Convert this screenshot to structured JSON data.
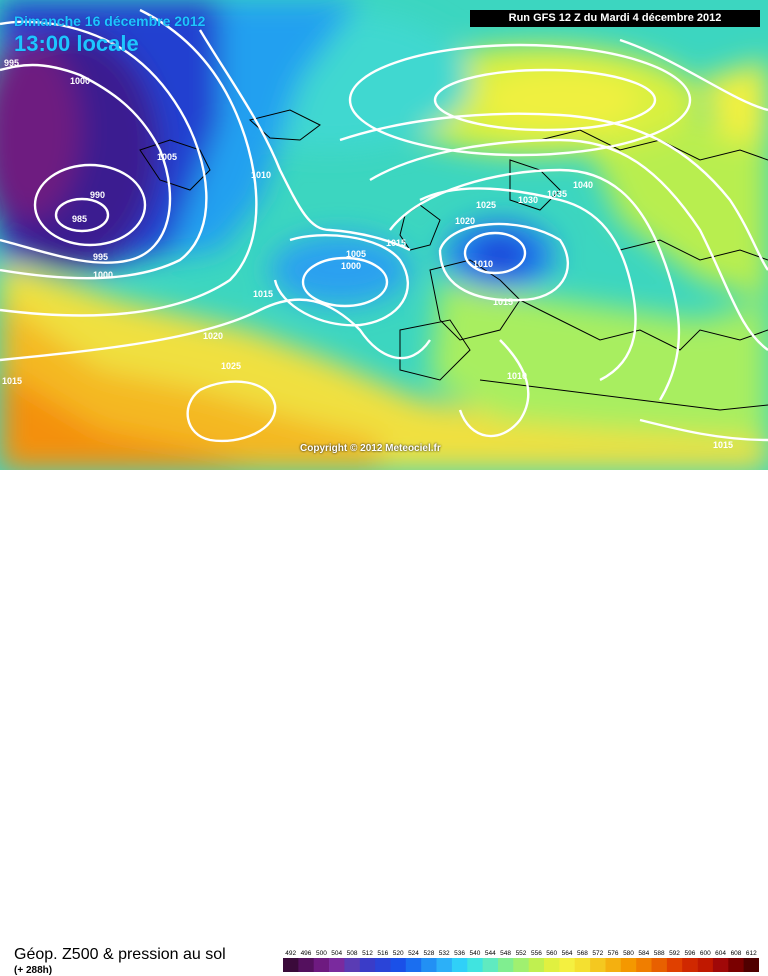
{
  "header": {
    "date": "Dimanche 16 décembre 2012",
    "time": "13:00 locale",
    "run": "Run GFS 12 Z du Mardi 4 décembre 2012"
  },
  "copyright": "Copyright © 2012 Meteociel.fr",
  "footer": {
    "title": "Géop. Z500 & pression au sol",
    "subtitle": "(+ 288h)"
  },
  "isobar_labels": [
    "995",
    "1000",
    "1005",
    "990",
    "985",
    "995",
    "1000",
    "1010",
    "1015",
    "1005",
    "1000",
    "1015",
    "1020",
    "1025",
    "1015",
    "1020",
    "1025",
    "1030",
    "1035",
    "1040",
    "1010",
    "1015",
    "1010",
    "1015"
  ],
  "legend": {
    "values": [
      "492",
      "496",
      "500",
      "504",
      "508",
      "512",
      "516",
      "520",
      "524",
      "528",
      "532",
      "536",
      "540",
      "544",
      "548",
      "552",
      "556",
      "560",
      "564",
      "568",
      "572",
      "576",
      "580",
      "584",
      "588",
      "592",
      "596",
      "600",
      "604",
      "608",
      "612"
    ],
    "colors": [
      "#3a0a3a",
      "#54105e",
      "#6e1a80",
      "#7a2a9e",
      "#5a3cb4",
      "#3a3cc8",
      "#2a44d8",
      "#1a50e8",
      "#1a6ef0",
      "#2290f4",
      "#2cb0f8",
      "#30d0f8",
      "#40e4e0",
      "#60eac0",
      "#80ee90",
      "#a0f070",
      "#c0f050",
      "#e0f040",
      "#f4f040",
      "#f4e030",
      "#f4c820",
      "#f4b010",
      "#f49800",
      "#f07e00",
      "#e86000",
      "#e04000",
      "#d02800",
      "#c01800",
      "#a00808",
      "#7a0000",
      "#500000"
    ]
  }
}
